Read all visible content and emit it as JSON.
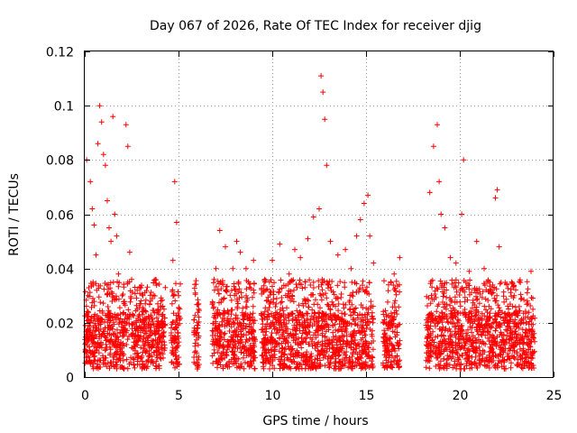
{
  "chart_data": {
    "type": "scatter",
    "title": "Day 067 of 2026, Rate Of TEC Index for receiver djig",
    "xlabel": "GPS time / hours",
    "ylabel": "ROTI / TECUs",
    "xlim": [
      0,
      25
    ],
    "ylim": [
      0,
      0.12
    ],
    "x_ticks": [
      0,
      5,
      10,
      15,
      20,
      25
    ],
    "x_tick_labels": [
      "0",
      "5",
      "10",
      "15",
      "20",
      "25"
    ],
    "y_ticks": [
      0,
      0.02,
      0.04,
      0.06,
      0.08,
      0.1,
      0.12
    ],
    "y_tick_labels": [
      "0",
      "0.02",
      "0.04",
      "0.06",
      "0.08",
      "0.1",
      "0.12"
    ],
    "grid": true,
    "marker": "plus",
    "series": [
      {
        "name": "ROTI",
        "color": "#ff0000",
        "x": [
          0.1,
          0.3,
          0.4,
          0.5,
          0.6,
          0.7,
          0.8,
          0.9,
          1.0,
          1.1,
          1.2,
          1.3,
          1.4,
          1.5,
          1.6,
          1.7,
          1.8,
          2.0,
          2.2,
          2.3,
          2.4,
          2.5,
          2.8,
          3.1,
          3.5,
          3.9,
          4.3,
          4.7,
          4.8,
          4.9,
          5.0,
          5.9,
          6.0,
          6.9,
          7.0,
          7.2,
          7.5,
          7.9,
          8.1,
          8.3,
          8.6,
          9.0,
          9.6,
          10.0,
          10.4,
          10.9,
          11.2,
          11.5,
          11.9,
          12.2,
          12.5,
          12.6,
          12.7,
          12.8,
          12.9,
          13.1,
          13.5,
          13.9,
          14.2,
          14.5,
          14.7,
          14.9,
          15.1,
          15.2,
          15.4,
          16.2,
          16.5,
          16.8,
          18.4,
          18.6,
          18.8,
          18.9,
          19.0,
          19.2,
          19.5,
          19.8,
          20.1,
          20.2,
          20.5,
          20.9,
          21.3,
          21.6,
          21.9,
          22.0,
          22.1,
          22.5,
          22.9,
          23.3,
          23.6,
          23.8
        ],
        "y": [
          0.08,
          0.072,
          0.062,
          0.056,
          0.045,
          0.086,
          0.1,
          0.094,
          0.082,
          0.078,
          0.065,
          0.055,
          0.05,
          0.096,
          0.06,
          0.052,
          0.038,
          0.03,
          0.093,
          0.085,
          0.046,
          0.036,
          0.032,
          0.03,
          0.028,
          0.025,
          0.033,
          0.043,
          0.072,
          0.057,
          0.03,
          0.031,
          0.02,
          0.036,
          0.04,
          0.054,
          0.048,
          0.04,
          0.05,
          0.046,
          0.04,
          0.043,
          0.036,
          0.043,
          0.049,
          0.038,
          0.047,
          0.044,
          0.051,
          0.059,
          0.062,
          0.111,
          0.105,
          0.095,
          0.078,
          0.05,
          0.045,
          0.047,
          0.04,
          0.052,
          0.058,
          0.064,
          0.067,
          0.052,
          0.042,
          0.034,
          0.038,
          0.044,
          0.068,
          0.085,
          0.093,
          0.072,
          0.06,
          0.055,
          0.044,
          0.042,
          0.06,
          0.08,
          0.039,
          0.05,
          0.04,
          0.035,
          0.066,
          0.069,
          0.048,
          0.034,
          0.03,
          0.029,
          0.028,
          0.039
        ]
      }
    ],
    "dense_segments_hours": [
      [
        0.0,
        4.3
      ],
      [
        4.6,
        5.1
      ],
      [
        5.8,
        6.1
      ],
      [
        6.8,
        9.1
      ],
      [
        9.4,
        15.4
      ],
      [
        15.9,
        16.8
      ],
      [
        18.2,
        24.0
      ]
    ],
    "dense_band": [
      0.003,
      0.024
    ]
  }
}
